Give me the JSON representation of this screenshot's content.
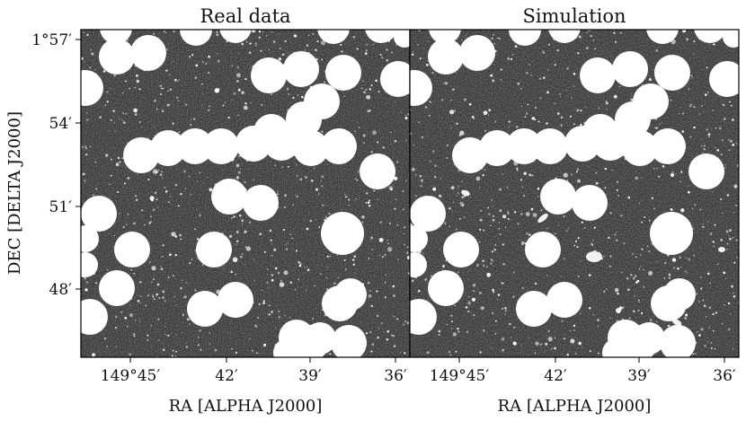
{
  "figure": {
    "panels": [
      {
        "title": "Real data"
      },
      {
        "title": "Simulation"
      }
    ],
    "xlabel": "RA [ALPHA J2000]",
    "ylabel": "DEC [DELTA J2000]",
    "x_ticks": [
      "149°45′",
      "42′",
      "39′",
      "36′"
    ],
    "y_ticks": [
      "1°57′",
      "54′",
      "51′",
      "48′"
    ],
    "colors": {
      "background": "#ffffff",
      "sky": "#1c1c1c",
      "mask": "#ffffff",
      "frame": "#000000"
    }
  }
}
